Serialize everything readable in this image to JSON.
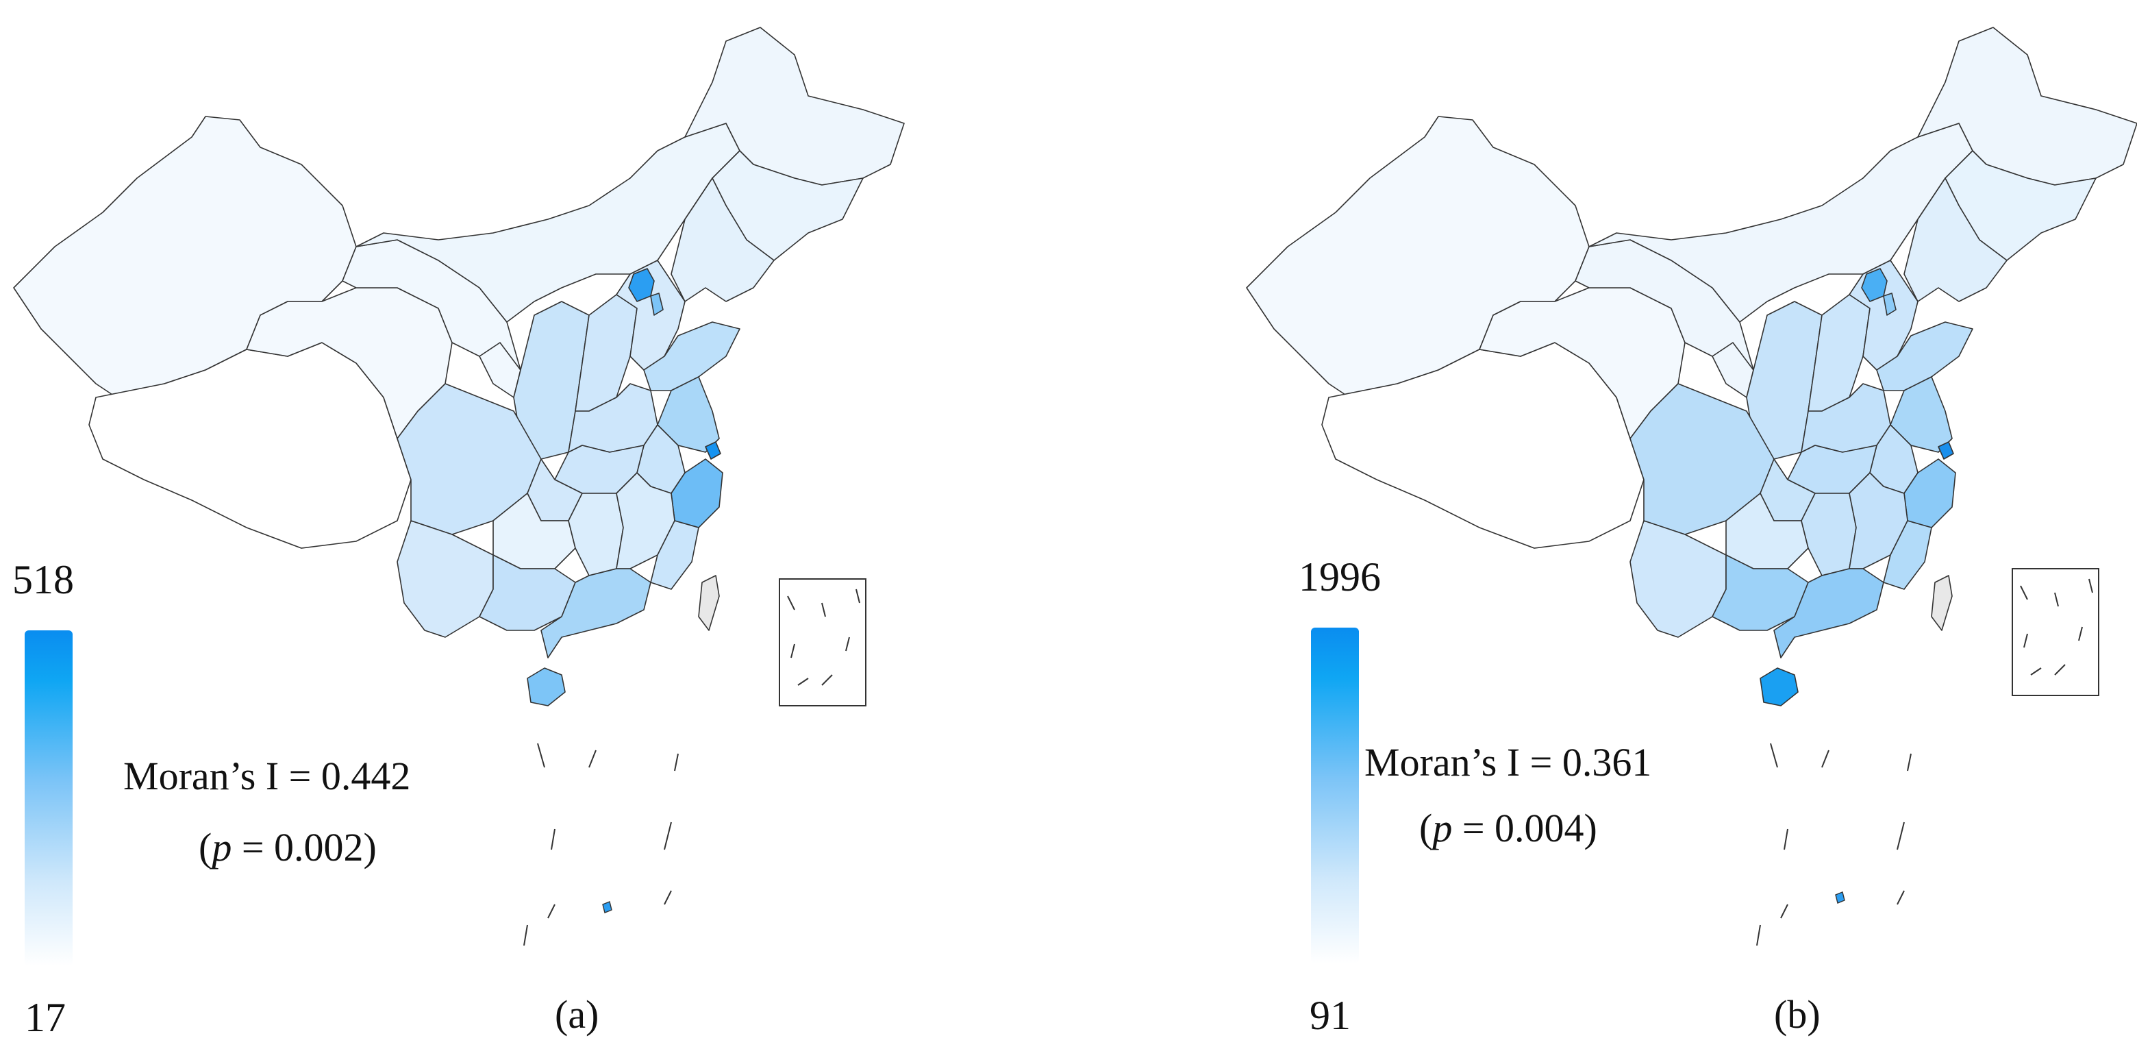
{
  "figure": {
    "panels": [
      {
        "id": "a",
        "label": "(a)",
        "legend": {
          "max": "518",
          "min": "17"
        },
        "stat": {
          "moran": "Moran’s I = 0.442",
          "p_open": "(",
          "p_symbol": "p",
          "p_value": " = 0.002)"
        }
      },
      {
        "id": "b",
        "label": "(b)",
        "legend": {
          "max": "1996",
          "min": "91"
        },
        "stat": {
          "moran": "Moran’s I = 0.361",
          "p_open": "(",
          "p_symbol": "p",
          "p_value": " = 0.004)"
        }
      }
    ],
    "colors": {
      "scale_low": "#ffffff",
      "scale_mid": "#7cc4f7",
      "scale_high": "#0a8df0",
      "no_data": "#ffffff",
      "outline": "#333333"
    }
  }
}
